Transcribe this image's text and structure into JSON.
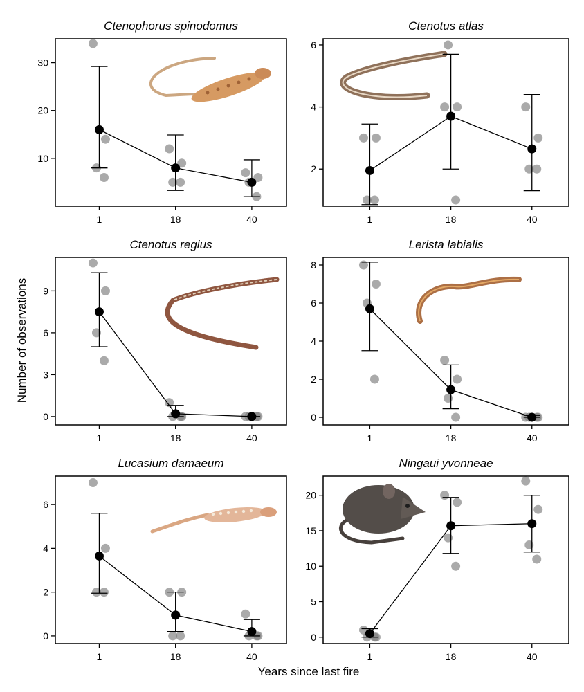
{
  "figure": {
    "ylabel": "Number of observations",
    "xlabel": "Years since last fire"
  },
  "chart_data": [
    {
      "type": "scatter",
      "title": "Ctenophorus spinodomus",
      "categories": [
        "1",
        "18",
        "40"
      ],
      "ylim": [
        0,
        35
      ],
      "yticks": [
        10,
        20,
        30
      ],
      "observations": [
        [
          34,
          14,
          8,
          6
        ],
        [
          12,
          9,
          5,
          5
        ],
        [
          7,
          6,
          5,
          2
        ]
      ],
      "mean": [
        16,
        8,
        5
      ],
      "error_low": [
        8,
        3.3,
        2
      ],
      "error_high": [
        29.2,
        14.9,
        9.7
      ],
      "illustration": "lizard-orange-spotted"
    },
    {
      "type": "scatter",
      "title": "Ctenotus atlas",
      "categories": [
        "1",
        "18",
        "40"
      ],
      "ylim": [
        0.8,
        6.2
      ],
      "yticks": [
        2,
        4,
        6
      ],
      "observations": [
        [
          3,
          3,
          1,
          1
        ],
        [
          4,
          4,
          6,
          1
        ],
        [
          4,
          3,
          2,
          2
        ]
      ],
      "mean": [
        1.95,
        3.7,
        2.65
      ],
      "error_low": [
        0.85,
        2,
        1.3
      ],
      "error_high": [
        3.45,
        5.7,
        4.4
      ],
      "illustration": "striped-skink"
    },
    {
      "type": "scatter",
      "title": "Ctenotus regius",
      "categories": [
        "1",
        "18",
        "40"
      ],
      "ylim": [
        -0.6,
        11.4
      ],
      "yticks": [
        0,
        3,
        6,
        9
      ],
      "observations": [
        [
          11,
          9,
          6,
          4
        ],
        [
          1,
          0,
          0,
          0
        ],
        [
          0,
          0,
          0,
          0
        ]
      ],
      "mean": [
        7.5,
        0.2,
        0
      ],
      "error_low": [
        5,
        0,
        0
      ],
      "error_high": [
        10.3,
        0.8,
        0
      ],
      "illustration": "striped-lizard-long-tail"
    },
    {
      "type": "scatter",
      "title": "Lerista labialis",
      "categories": [
        "1",
        "18",
        "40"
      ],
      "ylim": [
        -0.4,
        8.4
      ],
      "yticks": [
        0,
        2,
        4,
        6,
        8
      ],
      "observations": [
        [
          8,
          7,
          6,
          2
        ],
        [
          3,
          2,
          1,
          0
        ],
        [
          0,
          0,
          0,
          0
        ]
      ],
      "mean": [
        5.7,
        1.45,
        0
      ],
      "error_low": [
        3.5,
        0.45,
        0
      ],
      "error_high": [
        8.15,
        2.75,
        0.1
      ],
      "illustration": "slender-legless-skink"
    },
    {
      "type": "scatter",
      "title": "Lucasium damaeum",
      "categories": [
        "1",
        "18",
        "40"
      ],
      "ylim": [
        -0.35,
        7.3
      ],
      "yticks": [
        0,
        2,
        4,
        6
      ],
      "observations": [
        [
          7,
          4,
          2,
          2
        ],
        [
          2,
          2,
          0,
          0
        ],
        [
          1,
          0,
          0,
          0
        ]
      ],
      "mean": [
        3.65,
        0.95,
        0.2
      ],
      "error_low": [
        1.95,
        0.2,
        0
      ],
      "error_high": [
        5.6,
        2,
        0.75
      ],
      "illustration": "gecko"
    },
    {
      "type": "scatter",
      "title": "Ningaui yvonneae",
      "categories": [
        "1",
        "18",
        "40"
      ],
      "ylim": [
        -0.9,
        22.7
      ],
      "yticks": [
        0,
        5,
        10,
        15,
        20
      ],
      "observations": [
        [
          1,
          0,
          0,
          0
        ],
        [
          20,
          19,
          14,
          10
        ],
        [
          22,
          18,
          13,
          11
        ]
      ],
      "mean": [
        0.5,
        15.7,
        16
      ],
      "error_low": [
        0,
        11.8,
        12
      ],
      "error_high": [
        1.2,
        19.7,
        20
      ],
      "illustration": "small-marsupial-mouse"
    }
  ]
}
